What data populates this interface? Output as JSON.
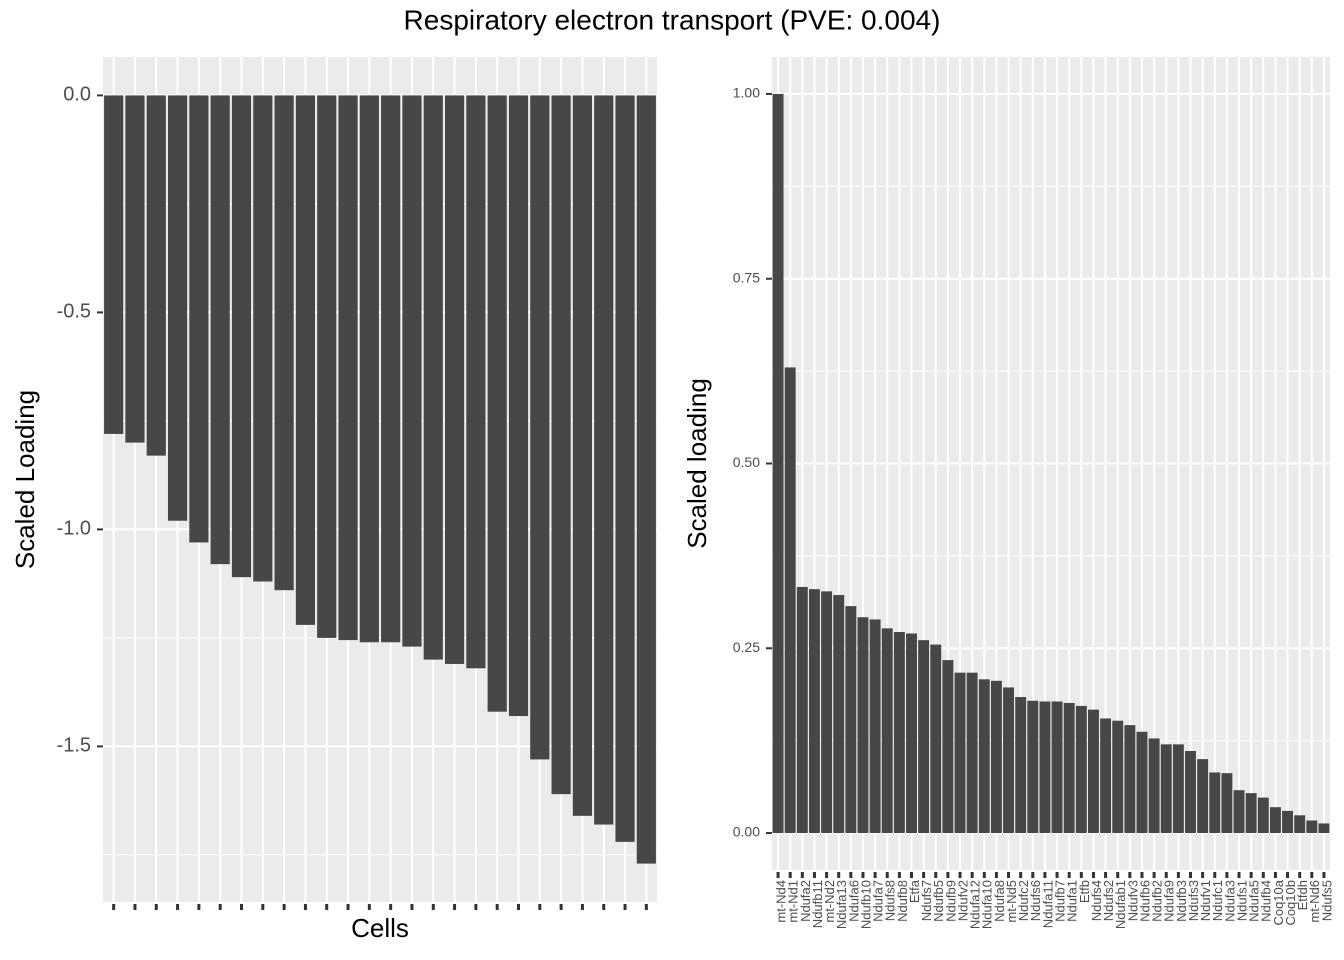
{
  "title": "Respiratory electron transport (PVE: 0.004)",
  "chart_data": [
    {
      "type": "bar",
      "x_label": "Cells",
      "y_label": "Scaled Loading",
      "color": "#474747",
      "categories": [
        null,
        null,
        null,
        null,
        null,
        null,
        null,
        null,
        null,
        null,
        null,
        null,
        null,
        null,
        null,
        null,
        null,
        null,
        null,
        null,
        null,
        null,
        null,
        null,
        null,
        null
      ],
      "values": [
        -0.78,
        -0.8,
        -0.83,
        -0.98,
        -1.03,
        -1.08,
        -1.11,
        -1.12,
        -1.14,
        -1.22,
        -1.25,
        -1.255,
        -1.26,
        -1.26,
        -1.27,
        -1.3,
        -1.31,
        -1.32,
        -1.42,
        -1.43,
        -1.53,
        -1.61,
        -1.66,
        -1.68,
        -1.72,
        -1.77
      ],
      "ylim": [
        -1.8585,
        0.0885
      ],
      "yticks": [
        {
          "value": 0,
          "label": "0.0"
        },
        -0.5,
        {
          "value": -1,
          "label": "-1.0"
        },
        -1.5
      ],
      "grid": true
    },
    {
      "type": "bar",
      "y_label": "Scaled loading",
      "color": "#474747",
      "categories": [
        "mt-Nd4",
        "mt-Nd1",
        "Ndufa2",
        "Ndufb11",
        "mt-Nd2",
        "Ndufa13",
        "Ndufa6",
        "Ndufb10",
        "Ndufa7",
        "Ndufs8",
        "Ndufb8",
        "Etfa",
        "Ndufs7",
        "Ndufb5",
        "Ndufb9",
        "Ndufv2",
        "Ndufa12",
        "Ndufa10",
        "Ndufa8",
        "mt-Nd5",
        "Ndufc2",
        "Ndufs6",
        "Ndufa11",
        "Ndufb7",
        "Ndufa1",
        "Etfb",
        "Ndufs4",
        "Ndufs2",
        "Ndufab1",
        "Ndufv3",
        "Ndufb6",
        "Ndufb2",
        "Ndufa9",
        "Ndufb3",
        "Ndufs3",
        "Ndufv1",
        "Ndufc1",
        "Ndufa3",
        "Ndufs1",
        "Ndufa5",
        "Ndufb4",
        "Coq10a",
        "Coq10b",
        "Etfdh",
        "mt-Nd6",
        "Ndufs5"
      ],
      "values": [
        1.0,
        0.63,
        0.333,
        0.33,
        0.327,
        0.322,
        0.307,
        0.292,
        0.289,
        0.277,
        0.272,
        0.27,
        0.261,
        0.255,
        0.234,
        0.217,
        0.217,
        0.208,
        0.206,
        0.197,
        0.184,
        0.179,
        0.178,
        0.178,
        0.176,
        0.172,
        0.167,
        0.155,
        0.152,
        0.146,
        0.137,
        0.128,
        0.12,
        0.12,
        0.111,
        0.1,
        0.082,
        0.081,
        0.058,
        0.054,
        0.048,
        0.035,
        0.03,
        0.024,
        0.017,
        0.013
      ],
      "ylim": [
        -0.05,
        1.05
      ],
      "yticks": [
        {
          "value": 0,
          "label": "0.00"
        },
        0.25,
        {
          "value": 0.5,
          "label": "0.50"
        },
        0.75,
        {
          "value": 1,
          "label": "1.00"
        }
      ],
      "grid": true
    }
  ]
}
